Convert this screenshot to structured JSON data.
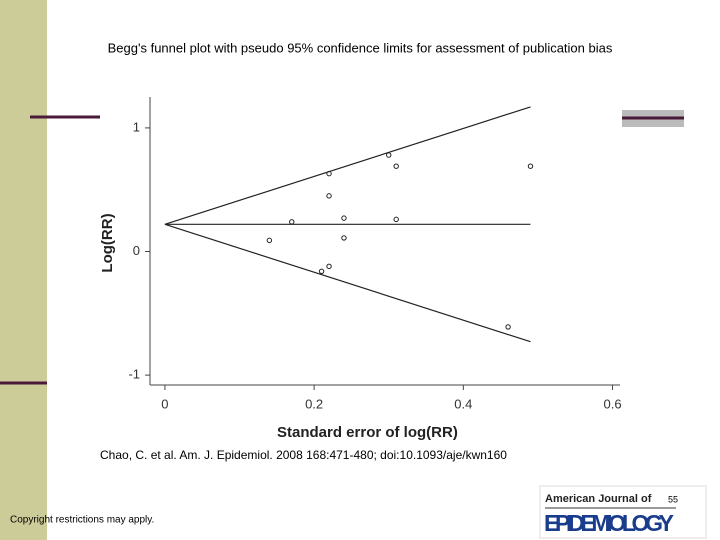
{
  "title": "Begg's funnel plot with pseudo 95% confidence limits for assessment of publication bias",
  "chart_data": {
    "type": "scatter",
    "x_label": "Standard error of log(RR)",
    "y_label": "Log(RR)",
    "x": [
      0.14,
      0.17,
      0.22,
      0.22,
      0.24,
      0.24,
      0.22,
      0.21,
      0.3,
      0.31,
      0.31,
      0.49,
      0.46
    ],
    "values": [
      0.09,
      0.24,
      0.63,
      0.45,
      0.27,
      0.11,
      -0.12,
      -0.16,
      0.78,
      0.69,
      0.26,
      0.69,
      -0.61
    ],
    "lines": [
      {
        "x": [
          0,
          0.49
        ],
        "y": [
          0.22,
          1.17
        ]
      },
      {
        "x": [
          0,
          0.49
        ],
        "y": [
          0.22,
          0.22
        ]
      },
      {
        "x": [
          0,
          0.49
        ],
        "y": [
          0.22,
          -0.73
        ]
      }
    ],
    "xlim": [
      -0.02,
      0.61
    ],
    "ylim": [
      -1.08,
      1.25
    ],
    "xticks": [
      0,
      0.2,
      0.4,
      0.6
    ],
    "yticks": [
      -1,
      0,
      1
    ]
  },
  "caption": "Chao, C. et al. Am. J. Epidemiol. 2008 168:471-480; doi:10.1093/aje/kwn160",
  "copyright": "Copyright restrictions may apply.",
  "slide_number": "55",
  "logo": {
    "line1": "American Journal of",
    "line2": "EPIDEMIOLOGY"
  }
}
